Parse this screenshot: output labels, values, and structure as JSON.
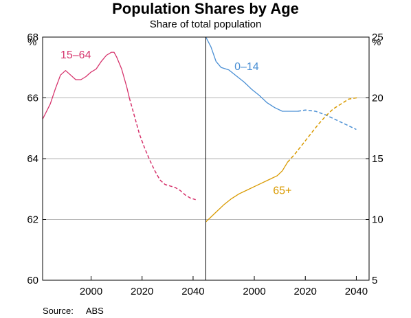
{
  "chart_data": {
    "type": "line",
    "title": "Population Shares by Age",
    "subtitle": "Share of total population",
    "source_label": "Source:",
    "source_value": "ABS",
    "left_unit": "%",
    "right_unit": "%",
    "colors": {
      "working_age": "#d6336c",
      "young": "#4a8fd4",
      "old": "#d99a00"
    },
    "panels": [
      {
        "id": "left",
        "xlim": [
          1981,
          2045
        ],
        "ylim": [
          60,
          68
        ],
        "x_ticks": [
          2000,
          2020,
          2040
        ],
        "y_ticks": [
          60,
          62,
          64,
          66,
          68
        ],
        "y_axis_side": "left",
        "series": [
          {
            "name": "15–64",
            "color_key": "working_age",
            "label_pos": [
              1994,
              67.3
            ],
            "actual": [
              [
                1981,
                65.3
              ],
              [
                1984,
                65.8
              ],
              [
                1986,
                66.3
              ],
              [
                1988,
                66.75
              ],
              [
                1990,
                66.9
              ],
              [
                1992,
                66.75
              ],
              [
                1994,
                66.6
              ],
              [
                1996,
                66.6
              ],
              [
                1998,
                66.7
              ],
              [
                2000,
                66.85
              ],
              [
                2002,
                66.95
              ],
              [
                2004,
                67.2
              ],
              [
                2006,
                67.4
              ],
              [
                2008,
                67.5
              ],
              [
                2009,
                67.5
              ],
              [
                2010,
                67.35
              ],
              [
                2012,
                66.95
              ],
              [
                2014,
                66.35
              ],
              [
                2015,
                66.0
              ]
            ],
            "projected": [
              [
                2015,
                66.0
              ],
              [
                2017,
                65.4
              ],
              [
                2019,
                64.8
              ],
              [
                2021,
                64.35
              ],
              [
                2023,
                63.95
              ],
              [
                2025,
                63.6
              ],
              [
                2027,
                63.3
              ],
              [
                2029,
                63.15
              ],
              [
                2031,
                63.1
              ],
              [
                2033,
                63.05
              ],
              [
                2035,
                62.95
              ],
              [
                2037,
                62.8
              ],
              [
                2039,
                62.7
              ],
              [
                2041,
                62.65
              ]
            ]
          }
        ]
      },
      {
        "id": "right",
        "xlim": [
          1981,
          2045
        ],
        "ylim": [
          5,
          25
        ],
        "x_ticks": [
          2000,
          2020,
          2040
        ],
        "y_ticks": [
          5,
          10,
          15,
          20,
          25
        ],
        "y_axis_side": "right",
        "series": [
          {
            "name": "0–14",
            "color_key": "young",
            "label_pos": [
              1997,
              22.3
            ],
            "actual": [
              [
                1981,
                25.0
              ],
              [
                1983,
                24.2
              ],
              [
                1985,
                23.0
              ],
              [
                1987,
                22.5
              ],
              [
                1990,
                22.3
              ],
              [
                1993,
                21.8
              ],
              [
                1996,
                21.3
              ],
              [
                1999,
                20.7
              ],
              [
                2002,
                20.2
              ],
              [
                2005,
                19.6
              ],
              [
                2008,
                19.2
              ],
              [
                2011,
                18.9
              ],
              [
                2014,
                18.9
              ],
              [
                2017,
                18.9
              ]
            ],
            "projected": [
              [
                2017,
                18.9
              ],
              [
                2020,
                19.0
              ],
              [
                2024,
                18.9
              ],
              [
                2028,
                18.6
              ],
              [
                2032,
                18.2
              ],
              [
                2036,
                17.8
              ],
              [
                2040,
                17.4
              ]
            ]
          },
          {
            "name": "65+",
            "color_key": "old",
            "label_pos": [
              2011,
              12.1
            ],
            "actual": [
              [
                1981,
                9.8
              ],
              [
                1983,
                10.2
              ],
              [
                1985,
                10.6
              ],
              [
                1988,
                11.2
              ],
              [
                1991,
                11.7
              ],
              [
                1994,
                12.1
              ],
              [
                1997,
                12.4
              ],
              [
                2000,
                12.7
              ],
              [
                2003,
                13.0
              ],
              [
                2006,
                13.3
              ],
              [
                2009,
                13.6
              ],
              [
                2011,
                14.0
              ],
              [
                2013,
                14.7
              ]
            ],
            "projected": [
              [
                2013,
                14.7
              ],
              [
                2016,
                15.4
              ],
              [
                2019,
                16.2
              ],
              [
                2022,
                17.0
              ],
              [
                2025,
                17.8
              ],
              [
                2028,
                18.5
              ],
              [
                2031,
                19.1
              ],
              [
                2034,
                19.5
              ],
              [
                2037,
                19.9
              ],
              [
                2040,
                20.0
              ],
              [
                2041,
                20.0
              ]
            ]
          }
        ]
      }
    ]
  }
}
